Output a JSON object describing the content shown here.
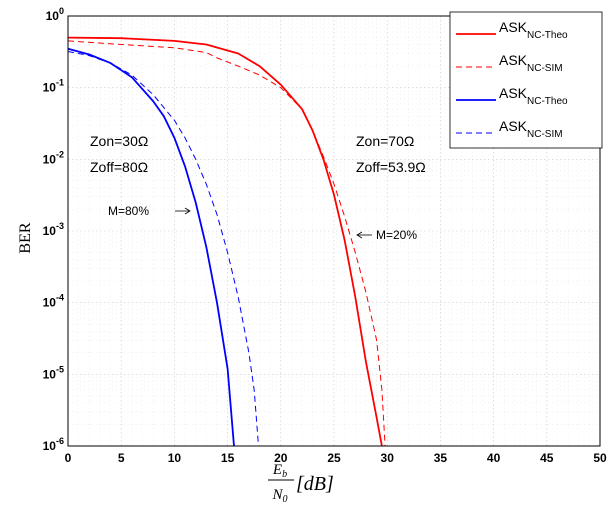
{
  "chart_data": {
    "type": "line",
    "title": "",
    "ylabel": "BER",
    "xlabel": {
      "numerator": "E",
      "numerator_sub": "b",
      "denominator": "N",
      "denominator_sub": "0",
      "unit": "[dB]"
    },
    "xlim": [
      0,
      50
    ],
    "ylim": [
      1e-06,
      1
    ],
    "yscale": "log",
    "x_ticks": [
      "0",
      "5",
      "10",
      "15",
      "20",
      "25",
      "30",
      "35",
      "40",
      "45",
      "50"
    ],
    "y_ticks": [
      {
        "base": "10",
        "exp": "0"
      },
      {
        "base": "10",
        "exp": "-1"
      },
      {
        "base": "10",
        "exp": "-2"
      },
      {
        "base": "10",
        "exp": "-3"
      },
      {
        "base": "10",
        "exp": "-4"
      },
      {
        "base": "10",
        "exp": "-5"
      },
      {
        "base": "10",
        "exp": "-6"
      }
    ],
    "grid": true,
    "legend_position": "top-right",
    "series": [
      {
        "name": "ASK",
        "name_sub": "NC-Theo",
        "color": "#ff0000",
        "style": "solid",
        "x": [
          0,
          5,
          10,
          13,
          16,
          18,
          20,
          22,
          23,
          24,
          25,
          26,
          27,
          28,
          29,
          29.5
        ],
        "y": [
          0.5,
          0.49,
          0.45,
          0.4,
          0.3,
          0.2,
          0.11,
          0.05,
          0.025,
          0.01,
          0.0032,
          0.00075,
          0.00012,
          1.5e-05,
          2.5e-06,
          1e-06
        ]
      },
      {
        "name": "ASK",
        "name_sub": "NC-SIM",
        "color": "#ff0000",
        "style": "dashed",
        "x": [
          0,
          5,
          10,
          13,
          14,
          16,
          18,
          20,
          22,
          23,
          24,
          25,
          26,
          27,
          28,
          29,
          29.5,
          29.8
        ],
        "y": [
          0.45,
          0.4,
          0.36,
          0.31,
          0.26,
          0.2,
          0.15,
          0.1,
          0.05,
          0.025,
          0.011,
          0.0045,
          0.0016,
          0.0005,
          0.00014,
          3e-05,
          6e-06,
          1e-06
        ]
      },
      {
        "name": "ASK",
        "name_sub": "NC-Theo",
        "color": "#0000ff",
        "style": "solid",
        "x": [
          0,
          2,
          4,
          6,
          8,
          9,
          10,
          11,
          12,
          13,
          14,
          15,
          15.6
        ],
        "y": [
          0.35,
          0.29,
          0.22,
          0.14,
          0.065,
          0.04,
          0.02,
          0.008,
          0.0025,
          0.0006,
          0.0001,
          1.2e-05,
          1e-06
        ]
      },
      {
        "name": "ASK",
        "name_sub": "NC-SIM",
        "color": "#0000ff",
        "style": "dashed",
        "x": [
          0,
          2,
          4,
          6,
          8,
          10,
          11,
          12,
          13,
          14,
          15,
          16,
          17,
          17.5,
          17.9
        ],
        "y": [
          0.32,
          0.28,
          0.22,
          0.15,
          0.08,
          0.035,
          0.02,
          0.01,
          0.0045,
          0.0017,
          0.0005,
          0.00012,
          2e-05,
          6e-06,
          1e-06
        ]
      }
    ],
    "annotations": {
      "left_zon": "Zon=30Ω",
      "left_zoff": "Zoff=80Ω",
      "right_zon": "Zon=70Ω",
      "right_zoff": "Zoff=53.9Ω",
      "m80": "M=80%",
      "m20": "M=20%"
    }
  }
}
